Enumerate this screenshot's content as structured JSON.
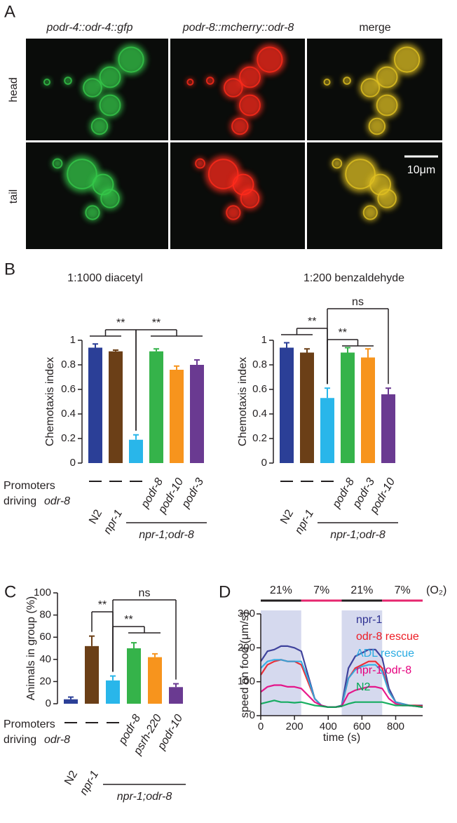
{
  "panel_labels": [
    "A",
    "B",
    "C",
    "D"
  ],
  "panel_a": {
    "columns": [
      "podr-4::odr-4::gfp",
      "podr-8::mcherry::odr-8",
      "merge"
    ],
    "rows": [
      "head",
      "tail"
    ],
    "scale_bar": "10μm"
  },
  "chart_data": [
    {
      "type": "bar",
      "title": "1:1000 diacetyl",
      "ylabel": "Chemotaxis index",
      "categories": [
        "N2",
        "npr-1",
        null,
        null,
        null,
        null
      ],
      "promoters": [
        null,
        null,
        null,
        "podr-8",
        "podr-10",
        "podr-3"
      ],
      "promoter_label": [
        "Promoters",
        "driving",
        "odr-8"
      ],
      "group_label": "npr-1;odr-8",
      "values": [
        0.94,
        0.91,
        0.19,
        0.91,
        0.76,
        0.8
      ],
      "errors": [
        0.03,
        0.01,
        0.04,
        0.02,
        0.03,
        0.04
      ],
      "colors": [
        "#2b3f97",
        "#6b3f17",
        "#29b6ea",
        "#35b34a",
        "#f7941d",
        "#6a3a91"
      ],
      "ylim": [
        0,
        1
      ],
      "yticks": [
        0,
        0.2,
        0.4,
        0.6,
        0.8,
        1
      ],
      "annotations": [
        "**",
        "**"
      ]
    },
    {
      "type": "bar",
      "title": "1:200 benzaldehyde",
      "ylabel": "Chemotaxis index",
      "categories": [
        "N2",
        "npr-1",
        null,
        null,
        null,
        null
      ],
      "promoters": [
        null,
        null,
        null,
        "podr-8",
        "podr-3",
        "podr-10"
      ],
      "group_label": "npr-1;odr-8",
      "values": [
        0.94,
        0.9,
        0.53,
        0.9,
        0.86,
        0.56
      ],
      "errors": [
        0.04,
        0.03,
        0.08,
        0.04,
        0.07,
        0.05
      ],
      "colors": [
        "#2b3f97",
        "#6b3f17",
        "#29b6ea",
        "#35b34a",
        "#f7941d",
        "#6a3a91"
      ],
      "ylim": [
        0,
        1
      ],
      "yticks": [
        0,
        0.2,
        0.4,
        0.6,
        0.8,
        1
      ],
      "annotations": [
        "**",
        "**",
        "ns"
      ]
    },
    {
      "type": "bar",
      "ylabel": "Animals in group (%)",
      "categories": [
        "N2",
        "npr-1",
        null,
        null,
        null,
        null
      ],
      "promoters": [
        null,
        null,
        null,
        "podr-8",
        "psrh-220",
        "podr-10"
      ],
      "promoter_label": [
        "Promoters",
        "driving",
        "odr-8"
      ],
      "group_label": "npr-1;odr-8",
      "values": [
        4,
        52,
        21,
        50,
        42,
        15
      ],
      "errors": [
        2,
        9,
        4,
        5,
        3,
        3
      ],
      "colors": [
        "#2b3f97",
        "#6b3f17",
        "#29b6ea",
        "#35b34a",
        "#f7941d",
        "#6a3a91"
      ],
      "ylim": [
        0,
        100
      ],
      "yticks": [
        0,
        20,
        40,
        60,
        80,
        100
      ],
      "annotations": [
        "**",
        "**",
        "ns"
      ]
    },
    {
      "type": "line",
      "xlabel": "time (s)",
      "ylabel": "speed on food (μm/s)",
      "x": [
        0,
        40,
        80,
        120,
        160,
        200,
        240,
        280,
        320,
        360,
        400,
        440,
        480,
        520,
        560,
        600,
        640,
        680,
        720,
        760,
        800,
        840,
        880,
        920,
        960
      ],
      "series": [
        {
          "name": "npr-1",
          "color": "#2e3192",
          "values": [
            160,
            190,
            195,
            205,
            205,
            200,
            190,
            120,
            50,
            30,
            25,
            25,
            30,
            140,
            175,
            185,
            195,
            195,
            170,
            80,
            40,
            35,
            30,
            30,
            30
          ]
        },
        {
          "name": "odr-8 rescue",
          "color": "#ed1c24",
          "values": [
            120,
            150,
            160,
            165,
            160,
            160,
            150,
            100,
            50,
            30,
            25,
            25,
            28,
            110,
            140,
            150,
            160,
            160,
            140,
            70,
            40,
            35,
            30,
            30,
            28
          ]
        },
        {
          "name": "ADL rescue",
          "color": "#29abe2",
          "values": [
            140,
            160,
            165,
            165,
            160,
            160,
            160,
            110,
            50,
            30,
            25,
            25,
            28,
            110,
            135,
            145,
            150,
            150,
            130,
            70,
            40,
            35,
            30,
            28,
            25
          ]
        },
        {
          "name": "npr-1;odr-8",
          "color": "#e6007e",
          "values": [
            70,
            85,
            90,
            90,
            85,
            85,
            80,
            60,
            40,
            30,
            25,
            25,
            28,
            65,
            75,
            80,
            85,
            85,
            80,
            50,
            35,
            30,
            30,
            28,
            25
          ]
        },
        {
          "name": "N2",
          "color": "#00a651",
          "values": [
            35,
            40,
            45,
            40,
            40,
            38,
            40,
            35,
            30,
            28,
            25,
            25,
            28,
            35,
            40,
            40,
            40,
            40,
            40,
            35,
            30,
            30,
            30,
            28,
            25
          ]
        }
      ],
      "periods": [
        {
          "label": "21%",
          "start": 0,
          "end": 240,
          "color": "#231f20",
          "shaded": true
        },
        {
          "label": "7%",
          "start": 240,
          "end": 480,
          "color": "#e6266e",
          "shaded": false
        },
        {
          "label": "21%",
          "start": 480,
          "end": 720,
          "color": "#231f20",
          "shaded": true
        },
        {
          "label": "7%",
          "start": 720,
          "end": 960,
          "color": "#e6266e",
          "shaded": false
        }
      ],
      "period_unit": "(O₂)",
      "xlim": [
        0,
        960
      ],
      "ylim": [
        0,
        300
      ],
      "xticks": [
        0,
        200,
        400,
        600,
        800
      ],
      "yticks": [
        0,
        100,
        200,
        300
      ]
    }
  ]
}
